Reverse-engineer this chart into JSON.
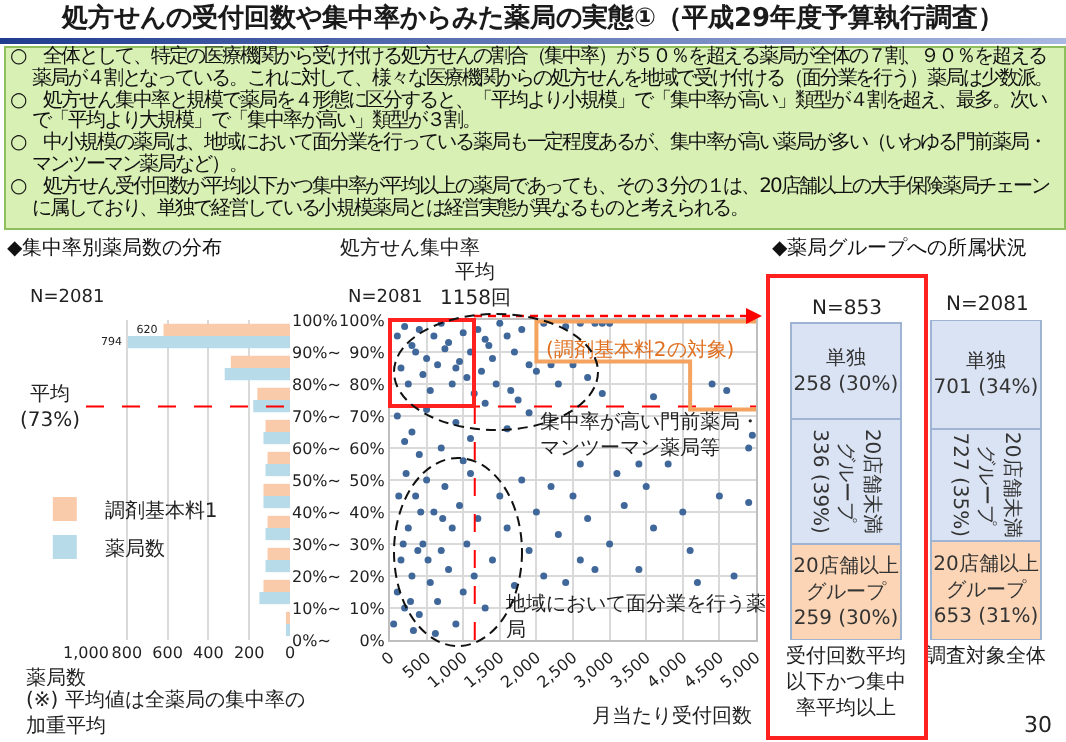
{
  "chart_data": [
    {
      "type": "other",
      "title": "処方せんの受付回数や集中率からみた薬局の実態①（平成29年度予算執行調査）",
      "annotations": [
        "○　全体として、特定の医療機関から受け付ける処方せんの割合（集中率）が５０％を超える薬局が全体の７割、９０％を超える薬局が４割となっている。これに対して、様々な医療機関からの処方せんを地域で受け付ける（面分業を行う）薬局は少数派。",
        "○　処方せん集中率と規模で薬局を４形態に区分すると、「平均より小規模」で「集中率が高い」類型が４割を超え、最多。次いで「平均より大規模」で「集中率が高い」類型が３割。",
        "○　中小規模の薬局は、地域において面分業を行っている薬局も一定程度あるが、集中率が高い薬局が多い（いわゆる門前薬局・マンツーマン薬局など）。",
        "○　処方せん受付回数が平均以下かつ集中率が平均以上の薬局であっても、その３分の１は、20店舗以上の大手保険薬局チェーンに属しており、単独で経営している小規模薬局とは経営実態が異なるものと考えられる。",
        "30"
      ]
    },
    {
      "type": "histogram",
      "title": "◆集中率別薬局数の分布",
      "orientation": "horizontal",
      "bins": [
        0,
        10,
        20,
        30,
        40,
        50,
        60,
        70,
        80,
        90,
        100
      ],
      "series": [
        {
          "name": "薬局数",
          "color": "#b7dbe9",
          "values": [
            20,
            150,
            120,
            120,
            130,
            120,
            130,
            180,
            320,
            794
          ],
          "value_labels": [
            null,
            null,
            null,
            null,
            null,
            null,
            null,
            null,
            null,
            "794"
          ]
        },
        {
          "name": "調剤基本料1",
          "color": "#f9cbab",
          "values": [
            20,
            130,
            110,
            110,
            130,
            110,
            120,
            160,
            290,
            620
          ],
          "value_labels": [
            null,
            null,
            null,
            null,
            null,
            null,
            null,
            null,
            null,
            "620"
          ]
        }
      ],
      "xlim": [
        1000,
        0
      ],
      "xticks": [
        {
          "value": 1000,
          "label": "1,000"
        },
        800,
        600,
        400,
        200,
        0
      ],
      "ylim": [
        0,
        100
      ],
      "yticks": [
        {
          "value": 0,
          "label": "0%~"
        },
        {
          "value": 10,
          "label": "10%~"
        },
        {
          "value": 20,
          "label": "20%~"
        },
        {
          "value": 30,
          "label": "30%~"
        },
        {
          "value": 40,
          "label": "40%~"
        },
        {
          "value": 50,
          "label": "50%~"
        },
        {
          "value": 60,
          "label": "60%~"
        },
        {
          "value": 70,
          "label": "70%~"
        },
        {
          "value": 80,
          "label": "80%~"
        },
        {
          "value": 90,
          "label": "90%~"
        },
        {
          "value": 100,
          "label": "100%"
        }
      ],
      "xlabel": "薬局数",
      "ref_lines": [
        {
          "axis": "y",
          "value": 73,
          "label": "平均\n(73%)",
          "color": "#ff0000",
          "line_style": "dashed"
        }
      ],
      "annotations": [
        "N=2081",
        "(※) 平均値は全薬局の集中率の加重平均"
      ],
      "legend": "left",
      "grid": "x"
    },
    {
      "type": "scatter",
      "color": "#40679a",
      "marker": "circle",
      "x": [
        100,
        200,
        300,
        400,
        500,
        600,
        700,
        800,
        900,
        1000,
        1100,
        1200,
        1300,
        1400,
        1500,
        150,
        250,
        350,
        450,
        550,
        650,
        750,
        850,
        950,
        1050,
        1150,
        1250,
        1350,
        1450,
        1600,
        1700,
        1800,
        1900,
        2000,
        2100,
        2200,
        2400,
        2600,
        2800,
        3000,
        2900,
        4400,
        4600,
        4900,
        2500,
        2700,
        1650,
        1750,
        2300,
        100,
        300,
        500,
        700,
        900,
        1100,
        1300,
        1600,
        1900,
        4950,
        3600,
        2900,
        3400,
        1000,
        400,
        200,
        50,
        100,
        150,
        200,
        250,
        300,
        350,
        400,
        450,
        500,
        550,
        600,
        650,
        700,
        750,
        800,
        850,
        900,
        950,
        1000,
        1050,
        1100,
        1150,
        1200,
        120,
        220,
        320,
        420,
        520,
        620,
        720,
        180,
        280,
        380,
        1300,
        1400,
        1500,
        1600,
        1700,
        1800,
        1900,
        2000,
        2100,
        2200,
        2300,
        2400,
        2500,
        2600,
        2700,
        2800,
        3000,
        3200,
        3400,
        3500,
        3600,
        3800,
        4000,
        4100,
        4200,
        4500,
        4700,
        4900,
        2600,
        3100
      ],
      "values": [
        95,
        98,
        92,
        97,
        88,
        95,
        99,
        93,
        85,
        96,
        90,
        97,
        94,
        88,
        99,
        85,
        80,
        90,
        83,
        78,
        86,
        91,
        80,
        87,
        82,
        77,
        84,
        92,
        80,
        95,
        90,
        97,
        86,
        84,
        99,
        86,
        98,
        99,
        99,
        99,
        99,
        80,
        78,
        60,
        86,
        82,
        78,
        75,
        80,
        70,
        65,
        72,
        60,
        68,
        63,
        74,
        66,
        71,
        64,
        76,
        77,
        55,
        56,
        58,
        62,
        5,
        15,
        25,
        10,
        35,
        20,
        45,
        8,
        30,
        50,
        18,
        40,
        12,
        28,
        48,
        22,
        35,
        5,
        42,
        15,
        30,
        52,
        20,
        38,
        45,
        52,
        3,
        40,
        25,
        2,
        38,
        30,
        12,
        28,
        10,
        25,
        45,
        35,
        17,
        50,
        28,
        40,
        20,
        48,
        33,
        18,
        45,
        25,
        38,
        22,
        30,
        42,
        22,
        48,
        35,
        55,
        40,
        28,
        18,
        45,
        20,
        43,
        55,
        52
      ],
      "xlim": [
        0,
        5000
      ],
      "xticks": [
        0,
        500,
        {
          "value": 1000,
          "label": "1,000"
        },
        {
          "value": 1500,
          "label": "1,500"
        },
        {
          "value": 2000,
          "label": "2,000"
        },
        {
          "value": 2500,
          "label": "2,500"
        },
        {
          "value": 3000,
          "label": "3,000"
        },
        {
          "value": 3500,
          "label": "3,500"
        },
        {
          "value": 4000,
          "label": "4,000"
        },
        {
          "value": 4500,
          "label": "4,500"
        },
        {
          "value": 5000,
          "label": "5,000"
        }
      ],
      "ylim": [
        0,
        100
      ],
      "yticks": [
        {
          "value": 0,
          "label": "0%"
        },
        {
          "value": 10,
          "label": "10%"
        },
        {
          "value": 20,
          "label": "20%"
        },
        {
          "value": 30,
          "label": "30%"
        },
        {
          "value": 40,
          "label": "40%"
        },
        {
          "value": 50,
          "label": "50%"
        },
        {
          "value": 60,
          "label": "60%"
        },
        {
          "value": 70,
          "label": "70%"
        },
        {
          "value": 80,
          "label": "80%"
        },
        {
          "value": 90,
          "label": "90%"
        },
        {
          "value": 100,
          "label": "100%"
        }
      ],
      "xlabel": "月当たり受付回数",
      "ylabel": "処方せん集中率",
      "grid": true,
      "ref_lines": [
        {
          "axis": "x",
          "value": 1158,
          "label": "平均\n1158回",
          "color": "#ff0000",
          "line_style": "dashed"
        },
        {
          "axis": "y",
          "value": 73,
          "color": "#ff0000",
          "line_style": "dashed"
        }
      ],
      "annotations": [
        "N=2081",
        {
          "text": "(調剤基本料2の対象)",
          "x": 2900,
          "y": 99
        },
        "集中率が高い門前薬局・マンツーマン薬局等",
        "地域において面分業を行う薬局"
      ]
    },
    {
      "type": "bar",
      "stacked": true,
      "title": "◆薬局グループへの所属状況",
      "categories": [
        "受付回数平均以下かつ集中率平均以上",
        "調査対象全体"
      ],
      "series": [
        {
          "name": "20店舗以上グループ",
          "color": "#fbd5b5",
          "values": [
            30,
            31
          ],
          "value_labels": [
            "259\n(30%)",
            "653\n(31%)"
          ]
        },
        {
          "name": "20店舗未満グループ",
          "color": "#dae3f3",
          "values": [
            39,
            35
          ],
          "value_labels": [
            "336\n(39%)",
            "727\n(35%)"
          ]
        },
        {
          "name": "単独",
          "color": "#dae3f3",
          "values": [
            30,
            34
          ],
          "value_labels": [
            "258\n(30%)",
            "701\n(34%)"
          ]
        }
      ],
      "ylim": [
        0,
        100
      ],
      "tick_labels": "x",
      "annotations": [
        {
          "text": "N=853",
          "x": "受付回数平均以下かつ集中率平均以上",
          "y": 99
        },
        {
          "text": "N=2081",
          "x": "調査対象全体",
          "y": 100
        }
      ]
    }
  ]
}
